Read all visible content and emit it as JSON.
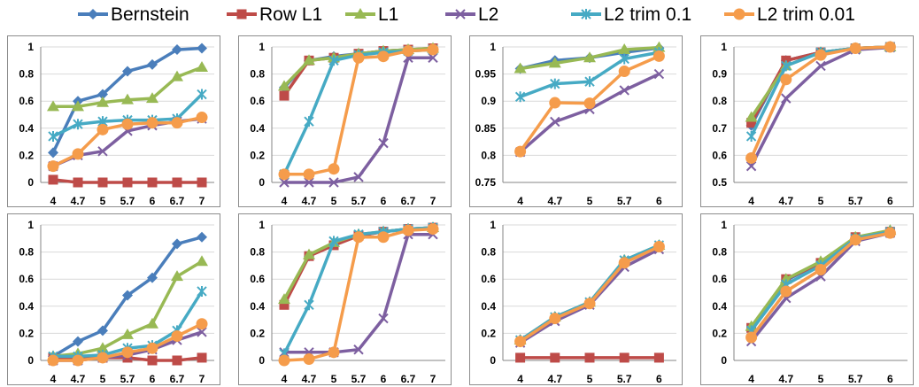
{
  "colors": {
    "Bernstein": "#4a7ebb",
    "Row L1": "#be4b48",
    "L1": "#98b954",
    "L2": "#7d5fa0",
    "L2 trim 0.1": "#46aac4",
    "L2 trim 0.01": "#f59c4b"
  },
  "legend": [
    {
      "label": "Bernstein",
      "marker": "diamond"
    },
    {
      "label": "Row L1",
      "marker": "square"
    },
    {
      "label": "L1",
      "marker": "triangle"
    },
    {
      "label": "L2",
      "marker": "x"
    },
    {
      "label": "L2 trim 0.1",
      "marker": "star"
    },
    {
      "label": "L2 trim 0.01",
      "marker": "circle"
    }
  ],
  "chart_data": [
    {
      "type": "line",
      "categories": [
        "4",
        "4.7",
        "5",
        "5.7",
        "6",
        "6.7",
        "7"
      ],
      "ylim": [
        0,
        1
      ],
      "yticks": [
        "0",
        "0.2",
        "0.4",
        "0.6",
        "0.8",
        "1"
      ],
      "series": [
        {
          "name": "Bernstein",
          "values": [
            0.22,
            0.6,
            0.65,
            0.82,
            0.87,
            0.98,
            0.99
          ]
        },
        {
          "name": "Row L1",
          "values": [
            0.02,
            0.0,
            0.0,
            0.0,
            0.0,
            0.0,
            0.0
          ]
        },
        {
          "name": "L1",
          "values": [
            0.56,
            0.56,
            0.59,
            0.61,
            0.62,
            0.78,
            0.85
          ]
        },
        {
          "name": "L2",
          "values": [
            0.12,
            0.2,
            0.23,
            0.38,
            0.42,
            0.45,
            0.47
          ]
        },
        {
          "name": "L2 trim 0.1",
          "values": [
            0.34,
            0.43,
            0.45,
            0.46,
            0.46,
            0.47,
            0.65
          ]
        },
        {
          "name": "L2 trim 0.01",
          "values": [
            0.12,
            0.21,
            0.39,
            0.43,
            0.44,
            0.44,
            0.48
          ]
        }
      ]
    },
    {
      "type": "line",
      "categories": [
        "4",
        "4.7",
        "5",
        "5.7",
        "6",
        "6.7",
        "7"
      ],
      "ylim": [
        0,
        1
      ],
      "yticks": [
        "0",
        "0.2",
        "0.4",
        "0.6",
        "0.8",
        "1"
      ],
      "series": [
        {
          "name": "Bernstein",
          "values": [
            0.7,
            0.9,
            0.93,
            0.95,
            0.97,
            0.98,
            0.98
          ]
        },
        {
          "name": "Row L1",
          "values": [
            0.64,
            0.9,
            0.92,
            0.95,
            0.97,
            0.98,
            0.99
          ]
        },
        {
          "name": "L1",
          "values": [
            0.71,
            0.9,
            0.92,
            0.95,
            0.97,
            0.98,
            0.99
          ]
        },
        {
          "name": "L2",
          "values": [
            0.0,
            0.0,
            0.0,
            0.04,
            0.29,
            0.92,
            0.92
          ]
        },
        {
          "name": "L2 trim 0.1",
          "values": [
            0.06,
            0.45,
            0.9,
            0.94,
            0.96,
            0.97,
            0.98
          ]
        },
        {
          "name": "L2 trim 0.01",
          "values": [
            0.06,
            0.06,
            0.1,
            0.92,
            0.93,
            0.97,
            0.98
          ]
        }
      ]
    },
    {
      "type": "line",
      "categories": [
        "4",
        "4.7",
        "5",
        "5.7",
        "6"
      ],
      "ylim": [
        0.75,
        1
      ],
      "yticks": [
        "0.75",
        "0.8",
        "0.85",
        "0.9",
        "0.95",
        "1"
      ],
      "series": [
        {
          "name": "Bernstein",
          "values": [
            0.96,
            0.975,
            0.98,
            0.99,
            0.998
          ]
        },
        {
          "name": "L1",
          "values": [
            0.96,
            0.97,
            0.98,
            0.995,
            0.999
          ]
        },
        {
          "name": "L2",
          "values": [
            0.806,
            0.862,
            0.885,
            0.92,
            0.95
          ]
        },
        {
          "name": "L2 trim 0.1",
          "values": [
            0.908,
            0.932,
            0.936,
            0.978,
            0.99
          ]
        },
        {
          "name": "L2 trim 0.01",
          "values": [
            0.807,
            0.897,
            0.896,
            0.955,
            0.983
          ]
        }
      ]
    },
    {
      "type": "line",
      "categories": [
        "4",
        "4.7",
        "5",
        "5.7",
        "6"
      ],
      "ylim": [
        0.5,
        1
      ],
      "yticks": [
        "0.5",
        "0.6",
        "0.7",
        "0.8",
        "0.9",
        "1"
      ],
      "series": [
        {
          "name": "Bernstein",
          "values": [
            0.71,
            0.95,
            0.98,
            0.995,
            1.0
          ]
        },
        {
          "name": "Row L1",
          "values": [
            0.72,
            0.95,
            0.98,
            0.995,
            1.0
          ]
        },
        {
          "name": "L1",
          "values": [
            0.74,
            0.93,
            0.98,
            0.995,
            1.0
          ]
        },
        {
          "name": "L2",
          "values": [
            0.56,
            0.81,
            0.93,
            0.99,
            0.998
          ]
        },
        {
          "name": "L2 trim 0.1",
          "values": [
            0.67,
            0.93,
            0.98,
            0.995,
            1.0
          ]
        },
        {
          "name": "L2 trim 0.01",
          "values": [
            0.59,
            0.88,
            0.97,
            0.995,
            1.0
          ]
        }
      ]
    },
    {
      "type": "line",
      "categories": [
        "4",
        "4.7",
        "5",
        "5.7",
        "6",
        "6.7",
        "7"
      ],
      "ylim": [
        0,
        1
      ],
      "yticks": [
        "0",
        "0.2",
        "0.4",
        "0.6",
        "0.8",
        "1"
      ],
      "series": [
        {
          "name": "Bernstein",
          "values": [
            0.03,
            0.14,
            0.22,
            0.48,
            0.61,
            0.86,
            0.91
          ]
        },
        {
          "name": "Row L1",
          "values": [
            0.02,
            0.02,
            0.02,
            0.02,
            0.0,
            0.0,
            0.02
          ]
        },
        {
          "name": "L1",
          "values": [
            0.03,
            0.05,
            0.09,
            0.19,
            0.27,
            0.62,
            0.73
          ]
        },
        {
          "name": "L2",
          "values": [
            0.0,
            0.0,
            0.02,
            0.04,
            0.08,
            0.15,
            0.21
          ]
        },
        {
          "name": "L2 trim 0.1",
          "values": [
            0.03,
            0.03,
            0.04,
            0.09,
            0.11,
            0.22,
            0.51
          ]
        },
        {
          "name": "L2 trim 0.01",
          "values": [
            0.0,
            0.0,
            0.02,
            0.06,
            0.09,
            0.18,
            0.27
          ]
        }
      ]
    },
    {
      "type": "line",
      "categories": [
        "4",
        "4.7",
        "5",
        "5.7",
        "6",
        "6.7",
        "7"
      ],
      "ylim": [
        0,
        1
      ],
      "yticks": [
        "0",
        "0.2",
        "0.4",
        "0.6",
        "0.8",
        "1"
      ],
      "series": [
        {
          "name": "Bernstein",
          "values": [
            0.43,
            0.77,
            0.86,
            0.92,
            0.95,
            0.97,
            0.98
          ]
        },
        {
          "name": "Row L1",
          "values": [
            0.41,
            0.77,
            0.85,
            0.92,
            0.95,
            0.97,
            0.98
          ]
        },
        {
          "name": "L1",
          "values": [
            0.45,
            0.78,
            0.87,
            0.93,
            0.95,
            0.97,
            0.98
          ]
        },
        {
          "name": "L2",
          "values": [
            0.06,
            0.06,
            0.06,
            0.08,
            0.31,
            0.93,
            0.93
          ]
        },
        {
          "name": "L2 trim 0.1",
          "values": [
            0.05,
            0.41,
            0.88,
            0.93,
            0.95,
            0.97,
            0.98
          ]
        },
        {
          "name": "L2 trim 0.01",
          "values": [
            0.0,
            0.01,
            0.06,
            0.91,
            0.91,
            0.96,
            0.97
          ]
        }
      ]
    },
    {
      "type": "line",
      "categories": [
        "4",
        "4.7",
        "5",
        "5.7",
        "6"
      ],
      "ylim": [
        0,
        1
      ],
      "yticks": [
        "0",
        "0.2",
        "0.4",
        "0.6",
        "0.8",
        "1"
      ],
      "series": [
        {
          "name": "Bernstein",
          "values": [
            0.15,
            0.32,
            0.43,
            0.73,
            0.84
          ]
        },
        {
          "name": "Row L1",
          "values": [
            0.02,
            0.02,
            0.02,
            0.02,
            0.02
          ]
        },
        {
          "name": "L1",
          "values": [
            0.15,
            0.32,
            0.43,
            0.74,
            0.85
          ]
        },
        {
          "name": "L2",
          "values": [
            0.13,
            0.29,
            0.41,
            0.69,
            0.82
          ]
        },
        {
          "name": "L2 trim 0.1",
          "values": [
            0.15,
            0.32,
            0.43,
            0.74,
            0.85
          ]
        },
        {
          "name": "L2 trim 0.01",
          "values": [
            0.14,
            0.31,
            0.42,
            0.72,
            0.84
          ]
        }
      ]
    },
    {
      "type": "line",
      "categories": [
        "4",
        "4.7",
        "5",
        "5.7",
        "6"
      ],
      "ylim": [
        0,
        1
      ],
      "yticks": [
        "0",
        "0.2",
        "0.4",
        "0.6",
        "0.8",
        "1"
      ],
      "series": [
        {
          "name": "Bernstein",
          "values": [
            0.23,
            0.59,
            0.72,
            0.9,
            0.95
          ]
        },
        {
          "name": "Row L1",
          "values": [
            0.24,
            0.6,
            0.72,
            0.91,
            0.95
          ]
        },
        {
          "name": "L1",
          "values": [
            0.25,
            0.6,
            0.73,
            0.91,
            0.96
          ]
        },
        {
          "name": "L2",
          "values": [
            0.14,
            0.46,
            0.62,
            0.88,
            0.94
          ]
        },
        {
          "name": "L2 trim 0.1",
          "values": [
            0.22,
            0.56,
            0.7,
            0.9,
            0.95
          ]
        },
        {
          "name": "L2 trim 0.01",
          "values": [
            0.17,
            0.51,
            0.67,
            0.89,
            0.94
          ]
        }
      ]
    }
  ]
}
